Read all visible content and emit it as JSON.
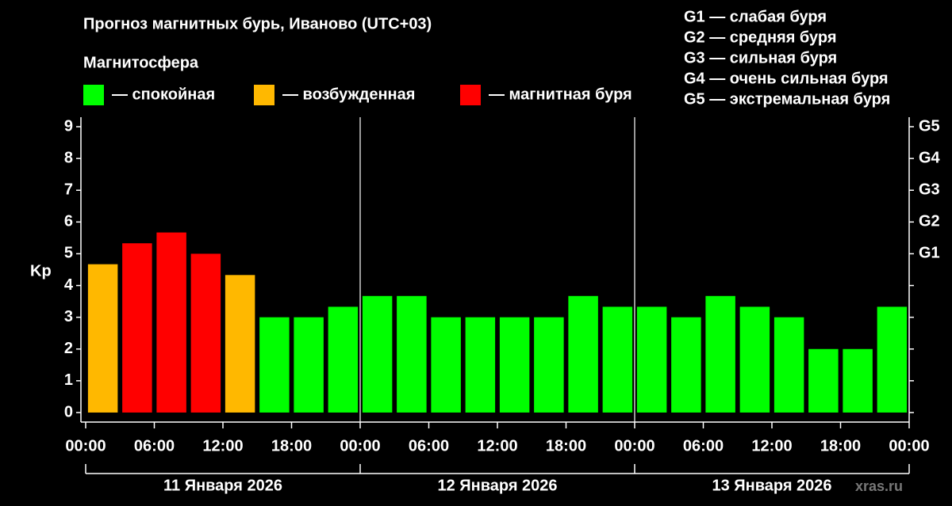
{
  "chart_data": {
    "type": "bar",
    "title": "Прогноз магнитных бурь, Иваново (UTC+03)",
    "legend_title": "Магнитосфера",
    "legend": [
      {
        "label": "— спокойная",
        "color": "#00ff00"
      },
      {
        "label": "— возбужденная",
        "color": "#ffb800"
      },
      {
        "label": "— магнитная буря",
        "color": "#ff0000"
      }
    ],
    "scale_legend": [
      "G1 — слабая буря",
      "G2 — средняя буря",
      "G3 — сильная буря",
      "G4 — очень сильная буря",
      "G5 — экстремальная буря"
    ],
    "y_label": "Kp",
    "x": [
      0,
      3,
      6,
      9,
      12,
      15,
      18,
      21,
      24,
      27,
      30,
      33,
      36,
      39,
      42,
      45,
      48,
      51,
      54,
      57,
      60,
      63,
      66,
      69
    ],
    "values": [
      4.67,
      5.33,
      5.67,
      5.0,
      4.33,
      3,
      3,
      3.33,
      3.67,
      3.67,
      3,
      3,
      3,
      3,
      3.67,
      3.33,
      3.33,
      3,
      3.67,
      3.33,
      3,
      2,
      2,
      3.33
    ],
    "bar_colors": [
      "#ffb800",
      "#ff0000",
      "#ff0000",
      "#ff0000",
      "#ffb800",
      "#00ff00",
      "#00ff00",
      "#00ff00",
      "#00ff00",
      "#00ff00",
      "#00ff00",
      "#00ff00",
      "#00ff00",
      "#00ff00",
      "#00ff00",
      "#00ff00",
      "#00ff00",
      "#00ff00",
      "#00ff00",
      "#00ff00",
      "#00ff00",
      "#00ff00",
      "#00ff00",
      "#00ff00"
    ],
    "bar_width": 2.6,
    "xlim": [
      0,
      72
    ],
    "xticks": [
      {
        "value": 0,
        "label": "00:00"
      },
      {
        "value": 6,
        "label": "06:00"
      },
      {
        "value": 12,
        "label": "12:00"
      },
      {
        "value": 18,
        "label": "18:00"
      },
      {
        "value": 24,
        "label": "00:00"
      },
      {
        "value": 30,
        "label": "06:00"
      },
      {
        "value": 36,
        "label": "12:00"
      },
      {
        "value": 42,
        "label": "18:00"
      },
      {
        "value": 48,
        "label": "00:00"
      },
      {
        "value": 54,
        "label": "06:00"
      },
      {
        "value": 60,
        "label": "12:00"
      },
      {
        "value": 66,
        "label": "18:00"
      },
      {
        "value": 72,
        "label": "00:00"
      }
    ],
    "dates": [
      "11 Января 2026",
      "12 Января 2026",
      "13 Января 2026"
    ],
    "ylim": [
      -0.3,
      9.3
    ],
    "yticks": [
      0,
      1,
      2,
      3,
      4,
      5,
      6,
      7,
      8,
      9
    ],
    "y2lim": [
      -0.3,
      9.3
    ],
    "y2ticks": [
      {
        "value": 5,
        "label": "G1"
      },
      {
        "value": 6,
        "label": "G2"
      },
      {
        "value": 7,
        "label": "G3"
      },
      {
        "value": 8,
        "label": "G4"
      },
      {
        "value": 9,
        "label": "G5"
      }
    ],
    "watermark": "xras.ru"
  }
}
